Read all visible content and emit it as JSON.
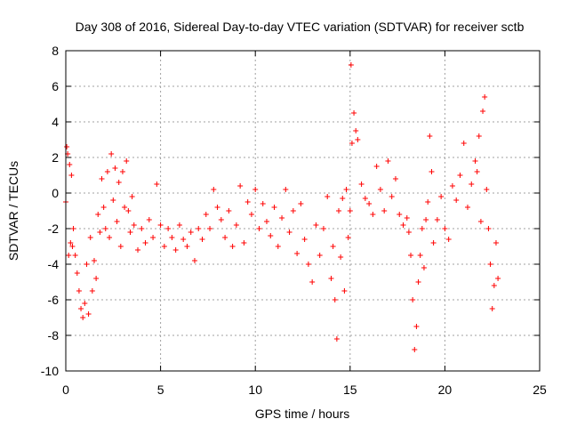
{
  "chart_data": {
    "type": "scatter",
    "title": "Day 308 of 2016, Sidereal Day-to-day VTEC variation (SDTVAR) for receiver sctb",
    "xlabel": "GPS time / hours",
    "ylabel": "SDTVAR / TECUs",
    "xlim": [
      0,
      25
    ],
    "ylim": [
      -10,
      8
    ],
    "xticks": [
      0,
      5,
      10,
      15,
      20,
      25
    ],
    "yticks": [
      -10,
      -8,
      -6,
      -4,
      -2,
      0,
      2,
      4,
      6,
      8
    ],
    "xtick_labels": [
      "0",
      "5",
      "10",
      "15",
      "20",
      "25"
    ],
    "ytick_labels": [
      "-10",
      "-8",
      "-6",
      "-4",
      "-2",
      "0",
      "2",
      "4",
      "6",
      "8"
    ],
    "grid": true,
    "marker": "plus",
    "color": "#ff0000",
    "series": [
      {
        "name": "SDTVAR",
        "x": [
          0.0,
          0.05,
          0.1,
          0.15,
          0.2,
          0.25,
          0.3,
          0.35,
          0.4,
          0.5,
          0.6,
          0.7,
          0.8,
          0.9,
          1.0,
          1.1,
          1.2,
          1.3,
          1.4,
          1.5,
          1.6,
          1.7,
          1.8,
          1.9,
          2.0,
          2.1,
          2.2,
          2.3,
          2.4,
          2.5,
          2.6,
          2.7,
          2.8,
          2.9,
          3.0,
          3.1,
          3.2,
          3.3,
          3.4,
          3.5,
          3.6,
          3.8,
          4.0,
          4.2,
          4.4,
          4.6,
          4.8,
          5.0,
          5.2,
          5.4,
          5.6,
          5.8,
          6.0,
          6.2,
          6.4,
          6.6,
          6.8,
          7.0,
          7.2,
          7.4,
          7.6,
          7.8,
          8.0,
          8.2,
          8.4,
          8.6,
          8.8,
          9.0,
          9.2,
          9.4,
          9.6,
          9.8,
          10.0,
          10.2,
          10.4,
          10.6,
          10.8,
          11.0,
          11.2,
          11.4,
          11.6,
          11.8,
          12.0,
          12.2,
          12.4,
          12.6,
          12.8,
          13.0,
          13.2,
          13.4,
          13.6,
          13.8,
          14.0,
          14.1,
          14.2,
          14.3,
          14.4,
          14.5,
          14.6,
          14.7,
          14.8,
          14.9,
          15.0,
          15.05,
          15.1,
          15.2,
          15.3,
          15.4,
          15.6,
          15.8,
          16.0,
          16.2,
          16.4,
          16.6,
          16.8,
          17.0,
          17.2,
          17.4,
          17.6,
          17.8,
          18.0,
          18.1,
          18.2,
          18.3,
          18.4,
          18.5,
          18.6,
          18.7,
          18.8,
          18.9,
          19.0,
          19.1,
          19.2,
          19.3,
          19.4,
          19.6,
          19.8,
          20.0,
          20.2,
          20.4,
          20.6,
          20.8,
          21.0,
          21.2,
          21.4,
          21.6,
          21.7,
          21.8,
          21.9,
          22.0,
          22.1,
          22.2,
          22.3,
          22.4,
          22.5,
          22.6,
          22.7,
          22.8
        ],
        "y": [
          -0.5,
          2.6,
          2.2,
          -3.5,
          1.6,
          -2.8,
          1.0,
          -3.0,
          -2.0,
          -3.5,
          -4.5,
          -5.5,
          -6.5,
          -7.0,
          -6.2,
          -4.0,
          -6.8,
          -2.5,
          -5.5,
          -3.8,
          -4.8,
          -1.2,
          -2.2,
          0.8,
          -0.8,
          -2.0,
          1.2,
          -2.5,
          2.2,
          -0.4,
          1.4,
          -1.6,
          0.6,
          -3.0,
          1.2,
          -0.8,
          1.8,
          -1.0,
          -2.2,
          -0.2,
          -1.8,
          -3.2,
          -2.0,
          -2.8,
          -1.5,
          -2.5,
          0.5,
          -1.8,
          -3.0,
          -2.0,
          -2.5,
          -3.2,
          -1.8,
          -2.6,
          -3.0,
          -2.2,
          -3.8,
          -2.0,
          -2.6,
          -1.2,
          -2.0,
          0.2,
          -0.8,
          -1.5,
          -2.5,
          -1.0,
          -3.0,
          -1.8,
          0.4,
          -2.8,
          -0.5,
          -1.2,
          0.2,
          -2.0,
          -0.6,
          -1.6,
          -2.4,
          -0.8,
          -3.0,
          -1.4,
          0.2,
          -2.2,
          -1.0,
          -3.4,
          -0.6,
          -2.6,
          -4.0,
          -5.0,
          -1.8,
          -3.5,
          -2.0,
          -0.2,
          -4.8,
          -3.0,
          -6.0,
          -8.2,
          -1.0,
          -3.6,
          -0.3,
          -5.5,
          0.2,
          -2.5,
          -1.0,
          7.2,
          2.8,
          4.5,
          3.5,
          3.0,
          0.5,
          -0.3,
          -0.6,
          -1.2,
          1.5,
          0.2,
          -1.0,
          1.8,
          -0.2,
          0.8,
          -1.2,
          -1.8,
          -1.4,
          -2.2,
          -3.5,
          -6.0,
          -8.8,
          -7.5,
          -5.0,
          -3.5,
          -2.0,
          -4.2,
          -1.5,
          -0.5,
          3.2,
          1.2,
          -2.8,
          -1.5,
          -0.2,
          -2.0,
          -2.6,
          0.4,
          -0.4,
          1.0,
          2.8,
          -0.8,
          0.5,
          1.8,
          1.2,
          3.2,
          -1.6,
          4.6,
          5.4,
          0.2,
          -2.0,
          -4.0,
          -6.5,
          -5.2,
          -2.8,
          -4.8
        ]
      }
    ]
  }
}
